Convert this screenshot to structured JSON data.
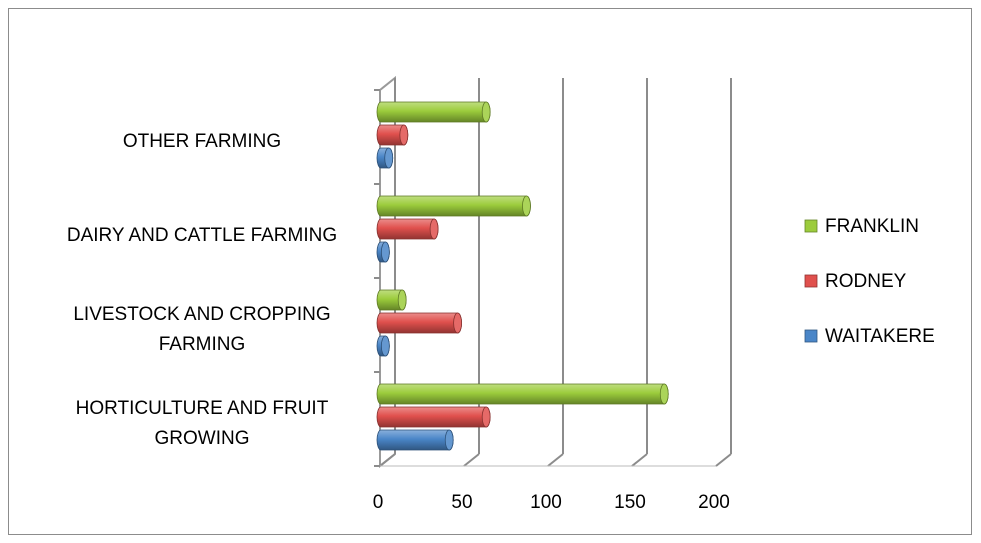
{
  "chart_data": {
    "type": "bar",
    "orientation": "horizontal",
    "style": "3d-cylinder",
    "categories": [
      [
        "HORTICULTURE AND FRUIT",
        "GROWING"
      ],
      [
        "LIVESTOCK AND CROPPING",
        "FARMING"
      ],
      [
        "DAIRY AND CATTLE FARMING"
      ],
      [
        "OTHER FARMING"
      ]
    ],
    "series": [
      {
        "name": "WAITAKERE",
        "color": "#4a86c8",
        "values": [
          40,
          2,
          2,
          4
        ]
      },
      {
        "name": "RODNEY",
        "color": "#e0504d",
        "values": [
          62,
          45,
          31,
          13
        ]
      },
      {
        "name": "FRANKLIN",
        "color": "#9ccc3c",
        "values": [
          168,
          12,
          86,
          62
        ]
      }
    ],
    "xlim": [
      0,
      200
    ],
    "x_ticks": [
      "0",
      "50",
      "100",
      "150",
      "200"
    ],
    "grid": true,
    "legend_position": "right"
  }
}
